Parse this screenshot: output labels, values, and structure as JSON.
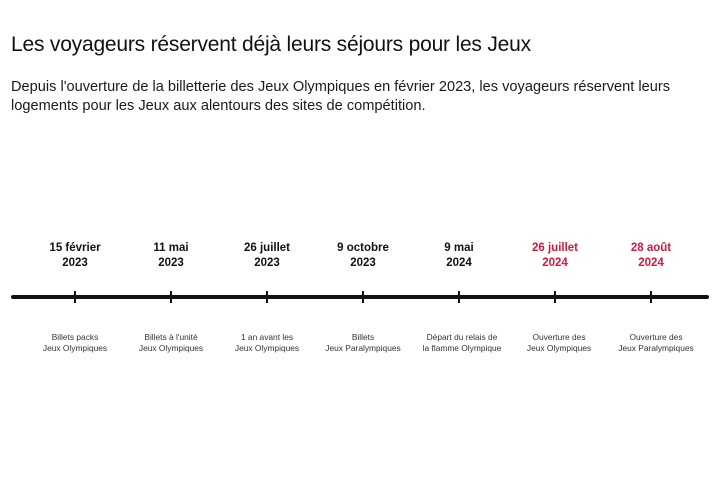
{
  "title": "Les voyageurs réservent déjà leurs séjours pour les Jeux",
  "subtitle_line1": "Depuis l'ouverture de la billetterie des Jeux Olympiques en février 2023, les voyageurs réservent  leurs",
  "subtitle_line2": "logements pour les Jeux aux alentours des sites de compétition.",
  "colors": {
    "text": "#111111",
    "highlight": "#d6163a"
  },
  "timeline": [
    {
      "date_line1": "15 février",
      "date_line2": "2023",
      "label_line1": "Billets packs",
      "label_line2": "Jeux Olympiques",
      "highlight": false
    },
    {
      "date_line1": "11 mai",
      "date_line2": "2023",
      "label_line1": "Billets à l'unité",
      "label_line2": "Jeux Olympiques",
      "highlight": false
    },
    {
      "date_line1": "26 juillet",
      "date_line2": "2023",
      "label_line1": "1 an avant les",
      "label_line2": "Jeux Olympiques",
      "highlight": false
    },
    {
      "date_line1": "9 octobre",
      "date_line2": "2023",
      "label_line1": "Billets",
      "label_line2": "Jeux Paralympiques",
      "highlight": false
    },
    {
      "date_line1": "9 mai",
      "date_line2": "2024",
      "label_line1": "Départ du relais de",
      "label_line2": "la flamme Olympique",
      "highlight": false
    },
    {
      "date_line1": "26 juillet",
      "date_line2": "2024",
      "label_line1": "Ouverture des",
      "label_line2": "Jeux Olympiques",
      "highlight": true
    },
    {
      "date_line1": "28 août",
      "date_line2": "2024",
      "label_line1": "Ouverture des",
      "label_line2": "Jeux Paralympiques",
      "highlight": true
    }
  ]
}
